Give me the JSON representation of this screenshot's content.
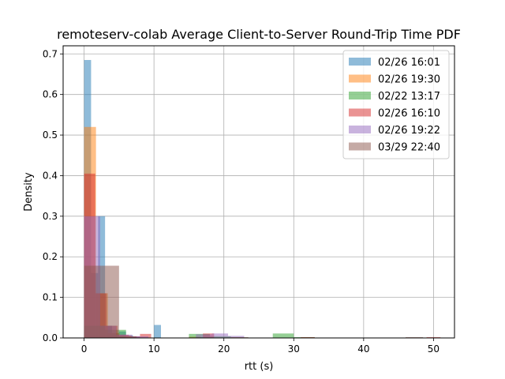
{
  "chart_data": {
    "type": "histogram",
    "title": "remoteserv-colab Average Client-to-Server Round-Trip Time PDF",
    "xlabel": "rtt (s)",
    "ylabel": "Density",
    "xlim": [
      -3,
      53
    ],
    "ylim": [
      0,
      0.72
    ],
    "xticks": [
      0,
      10,
      20,
      30,
      40,
      50
    ],
    "yticks": [
      0.0,
      0.1,
      0.2,
      0.3,
      0.4,
      0.5,
      0.6,
      0.7
    ],
    "grid": true,
    "legend_position": "top-right",
    "alpha": 0.5,
    "series": [
      {
        "name": "02/26 16:01",
        "color": "#1f77b4",
        "bins": [
          [
            0,
            1,
            0.685
          ],
          [
            1,
            2,
            0.16
          ],
          [
            2,
            3,
            0.3
          ],
          [
            3,
            4,
            0.03
          ],
          [
            4,
            5,
            0.012
          ],
          [
            5,
            6,
            0.016
          ],
          [
            6,
            7,
            0.006
          ],
          [
            7,
            8,
            0.003
          ],
          [
            10,
            11,
            0.032
          ],
          [
            16,
            17,
            0.002
          ]
        ]
      },
      {
        "name": "02/26 19:30",
        "color": "#ff7f0e",
        "bins": [
          [
            0,
            1.7,
            0.52
          ],
          [
            1.7,
            3.4,
            0.11
          ],
          [
            3.4,
            5.1,
            0.012
          ],
          [
            5.1,
            6.8,
            0.006
          ],
          [
            15,
            16.7,
            0.003
          ]
        ]
      },
      {
        "name": "02/22 13:17",
        "color": "#2ca02c",
        "bins": [
          [
            0,
            3,
            0.03
          ],
          [
            3,
            6,
            0.02
          ],
          [
            15,
            18,
            0.01
          ],
          [
            18,
            21,
            0.004
          ],
          [
            27,
            30,
            0.011
          ],
          [
            30,
            33,
            0.002
          ]
        ]
      },
      {
        "name": "02/26 16:10",
        "color": "#d62728",
        "bins": [
          [
            0,
            1.6,
            0.405
          ],
          [
            1.6,
            3.2,
            0.11
          ],
          [
            3.2,
            4.8,
            0.03
          ],
          [
            4.8,
            6.4,
            0.008
          ],
          [
            6.4,
            8,
            0.004
          ],
          [
            8,
            9.6,
            0.01
          ],
          [
            17,
            18.6,
            0.011
          ],
          [
            31,
            33,
            0.002
          ],
          [
            49,
            51,
            0.002
          ]
        ]
      },
      {
        "name": "02/26 19:22",
        "color": "#9467bd",
        "bins": [
          [
            0,
            2.3,
            0.3
          ],
          [
            2.3,
            4.6,
            0.03
          ],
          [
            4.6,
            6.9,
            0.008
          ],
          [
            6.9,
            9.2,
            0.004
          ],
          [
            16,
            18.3,
            0.009
          ],
          [
            18.3,
            20.6,
            0.011
          ],
          [
            20.6,
            22.9,
            0.005
          ]
        ]
      },
      {
        "name": "03/29 22:40",
        "color": "#8c564b",
        "bins": [
          [
            0,
            2.5,
            0.178
          ],
          [
            2.5,
            5,
            0.178
          ],
          [
            5,
            7.5,
            0.004
          ],
          [
            21,
            23.5,
            0.002
          ],
          [
            46,
            48.5,
            0.002
          ]
        ]
      }
    ]
  }
}
